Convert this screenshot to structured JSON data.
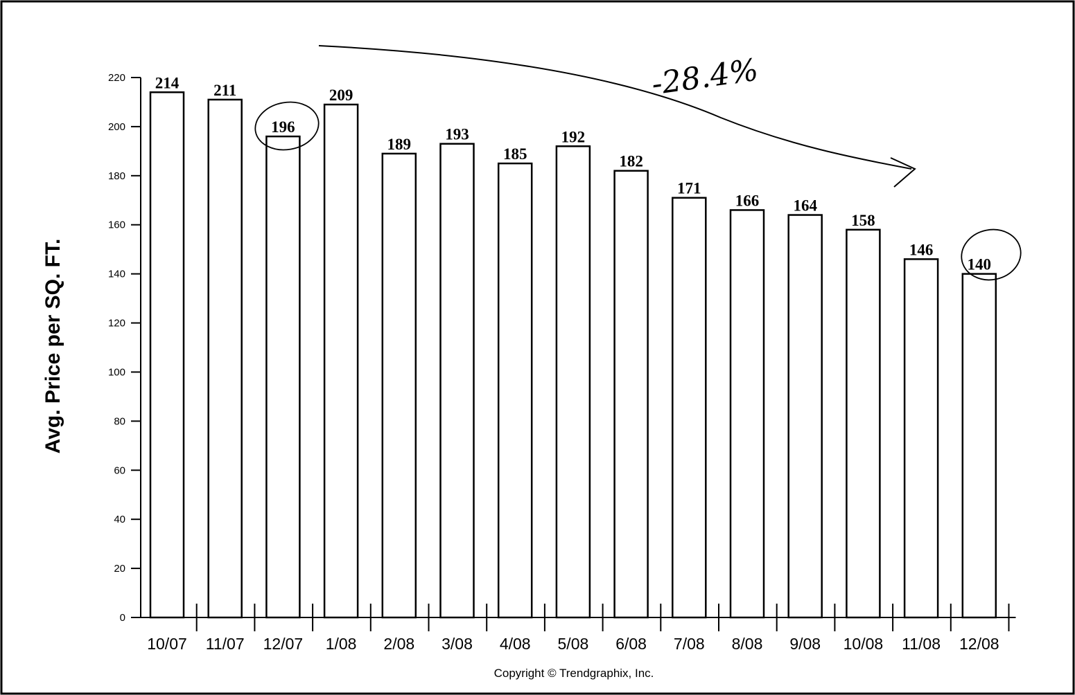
{
  "chart_data": {
    "type": "bar",
    "ylabel": "Avg. Price per SQ. FT.",
    "xlabel": "",
    "categories": [
      "10/07",
      "11/07",
      "12/07",
      "1/08",
      "2/08",
      "3/08",
      "4/08",
      "5/08",
      "6/08",
      "7/08",
      "8/08",
      "9/08",
      "10/08",
      "11/08",
      "12/08"
    ],
    "values": [
      214,
      211,
      196,
      209,
      189,
      193,
      185,
      192,
      182,
      171,
      166,
      164,
      158,
      146,
      140
    ],
    "data_labels": [
      "214",
      "211",
      "196",
      "209",
      "189",
      "193",
      "185",
      "192",
      "182",
      "171",
      "166",
      "164",
      "158",
      "146",
      "140"
    ],
    "ylim": [
      0,
      220
    ],
    "yticks": [
      "0",
      "20",
      "40",
      "60",
      "80",
      "100",
      "120",
      "140",
      "160",
      "180",
      "200",
      "220"
    ],
    "grid": false,
    "bar_fill": "#ffffff",
    "bar_stroke": "#000000",
    "copyright": "Copyright © Trendgraphix, Inc.",
    "annotations": {
      "handwritten_text": "-28.4%",
      "circled_categories": [
        "12/07",
        "12/08"
      ],
      "trend_arrow": "downward arrow from 1/08 toward 11/08"
    }
  }
}
